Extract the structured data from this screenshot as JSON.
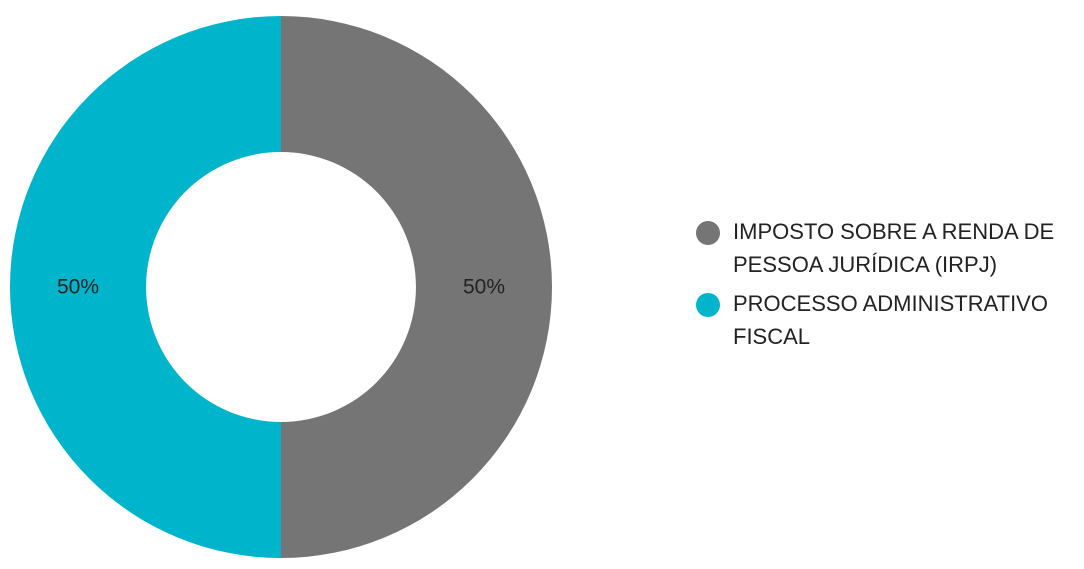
{
  "chart_data": {
    "type": "pie",
    "donut": true,
    "title": "",
    "slices": [
      {
        "label": "IMPOSTO SOBRE A RENDA DE PESSOA JURÍDICA (IRPJ)",
        "value": 50,
        "display": "50%",
        "color": "#757575"
      },
      {
        "label": "PROCESSO ADMINISTRATIVO FISCAL",
        "value": 50,
        "display": "50%",
        "color": "#00b5cb"
      }
    ],
    "legend_position": "right"
  }
}
